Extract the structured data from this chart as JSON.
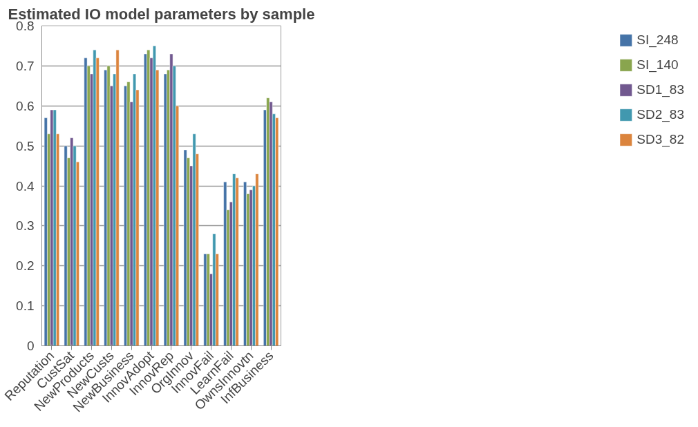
{
  "chart_data": {
    "type": "bar",
    "title": "Estimated IO model parameters by sample",
    "categories": [
      "Reputation",
      "CustSat",
      "NewProducts",
      "NewCusts",
      "NewBusiness",
      "InnovAdopt",
      "InnovRep",
      "OrgInnov",
      "InnovFail",
      "LearnFail",
      "OwnsInnovtn",
      "InfBusiness"
    ],
    "series": [
      {
        "name": "SI_248",
        "color": "#4573a7",
        "values": [
          0.57,
          0.5,
          0.72,
          0.69,
          0.65,
          0.73,
          0.68,
          0.49,
          0.23,
          0.41,
          0.41,
          0.59
        ]
      },
      {
        "name": "SI_140",
        "color": "#89a54e",
        "values": [
          0.53,
          0.47,
          0.7,
          0.7,
          0.66,
          0.74,
          0.69,
          0.47,
          0.23,
          0.34,
          0.38,
          0.62
        ]
      },
      {
        "name": "SD1_83",
        "color": "#71588f",
        "values": [
          0.59,
          0.52,
          0.68,
          0.65,
          0.61,
          0.72,
          0.73,
          0.45,
          0.18,
          0.36,
          0.39,
          0.61
        ]
      },
      {
        "name": "SD2_83",
        "color": "#4198af",
        "values": [
          0.59,
          0.5,
          0.74,
          0.68,
          0.68,
          0.75,
          0.7,
          0.53,
          0.28,
          0.43,
          0.4,
          0.58
        ]
      },
      {
        "name": "SD3_82",
        "color": "#db843d",
        "values": [
          0.53,
          0.46,
          0.72,
          0.74,
          0.64,
          0.69,
          0.6,
          0.48,
          0.23,
          0.42,
          0.43,
          0.57
        ]
      }
    ],
    "ylim": [
      0,
      0.8
    ],
    "yticks": [
      0,
      {
        "value": 0.1,
        "label": "0.1"
      },
      {
        "value": 0.2,
        "label": "0.2"
      },
      {
        "value": 0.3,
        "label": "0.3"
      },
      {
        "value": 0.4,
        "label": "0.4"
      },
      {
        "value": 0.5,
        "label": "0.5"
      },
      {
        "value": 0.6,
        "label": "0.6"
      },
      {
        "value": 0.7,
        "label": "0.7"
      },
      {
        "value": 0.8,
        "label": "0.8"
      }
    ],
    "grid": "y",
    "legend": "right"
  }
}
